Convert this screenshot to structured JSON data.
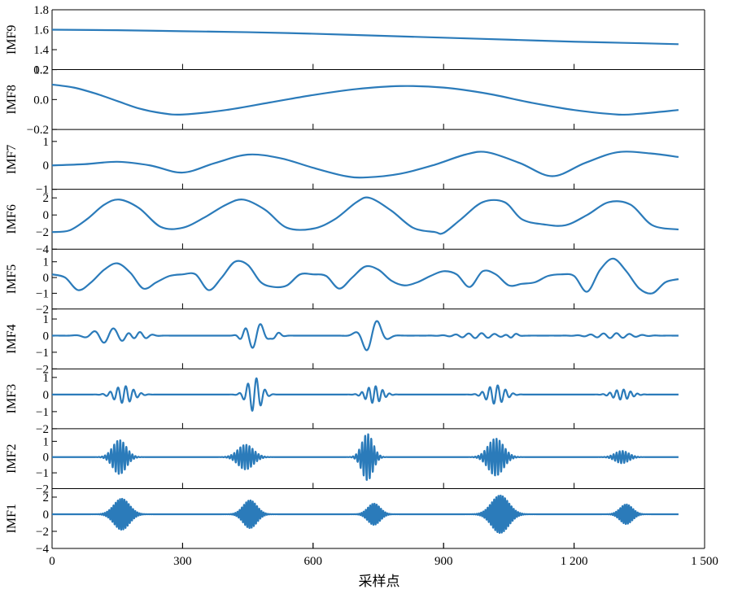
{
  "chart_data": {
    "type": "line",
    "panel_count": 9,
    "xlabel": "采样点",
    "xlim": [
      0,
      1500
    ],
    "xticks": [
      0,
      300,
      600,
      900,
      1200,
      1500
    ],
    "xtick_labels": [
      "0",
      "300",
      "600",
      "900",
      "1 200",
      "1 500"
    ],
    "grid": false,
    "legend": "none",
    "color": "#2b7bba",
    "series": [
      {
        "name": "IMF9",
        "ylim": [
          1.2,
          1.8
        ],
        "yticks": [
          1.2,
          1.4,
          1.6,
          1.8
        ],
        "ytick_labels": [
          "1.2",
          "1.4",
          "1.6",
          "1.8"
        ],
        "x": [
          0,
          150,
          300,
          450,
          600,
          750,
          900,
          1050,
          1200,
          1350,
          1440
        ],
        "y": [
          1.6,
          1.595,
          1.585,
          1.575,
          1.56,
          1.54,
          1.52,
          1.5,
          1.48,
          1.465,
          1.455
        ]
      },
      {
        "name": "IMF8",
        "ylim": [
          -0.2,
          0.2
        ],
        "yticks": [
          -0.2,
          0.0,
          0.2
        ],
        "ytick_labels": [
          "−0.2",
          "0.0",
          "0.2"
        ],
        "x": [
          0,
          50,
          100,
          150,
          200,
          250,
          300,
          400,
          500,
          600,
          700,
          800,
          900,
          1000,
          1100,
          1200,
          1300,
          1350,
          1440
        ],
        "y": [
          0.1,
          0.08,
          0.04,
          -0.01,
          -0.06,
          -0.09,
          -0.1,
          -0.07,
          -0.02,
          0.03,
          0.07,
          0.09,
          0.08,
          0.04,
          -0.02,
          -0.07,
          -0.1,
          -0.095,
          -0.07
        ]
      },
      {
        "name": "IMF7",
        "ylim": [
          -1,
          1.5
        ],
        "yticks": [
          -1,
          0,
          1
        ],
        "ytick_labels": [
          "−1",
          "0",
          "1"
        ],
        "x": [
          0,
          75,
          150,
          225,
          300,
          375,
          450,
          525,
          600,
          675,
          725,
          800,
          875,
          950,
          1000,
          1075,
          1150,
          1225,
          1300,
          1375,
          1440
        ],
        "y": [
          0,
          0.05,
          0.15,
          0.0,
          -0.3,
          0.1,
          0.45,
          0.3,
          -0.1,
          -0.45,
          -0.5,
          -0.35,
          0.0,
          0.45,
          0.55,
          0.1,
          -0.45,
          0.1,
          0.55,
          0.5,
          0.35
        ]
      },
      {
        "name": "IMF6",
        "ylim": [
          -4,
          3
        ],
        "yticks": [
          -4,
          -2,
          0,
          2
        ],
        "ytick_labels": [
          "−4",
          "−2",
          "0",
          "2"
        ],
        "x": [
          0,
          40,
          80,
          120,
          155,
          200,
          250,
          300,
          350,
          400,
          440,
          490,
          540,
          600,
          650,
          700,
          730,
          780,
          830,
          880,
          900,
          940,
          990,
          1040,
          1080,
          1130,
          1180,
          1230,
          1280,
          1330,
          1380,
          1440
        ],
        "y": [
          -2,
          -1.8,
          -0.5,
          1.2,
          1.8,
          0.8,
          -1.4,
          -1.5,
          -0.3,
          1.2,
          1.8,
          0.6,
          -1.5,
          -1.6,
          -0.5,
          1.5,
          2.0,
          0.5,
          -1.5,
          -2.0,
          -2.1,
          -0.5,
          1.5,
          1.5,
          -0.5,
          -1.1,
          -1.2,
          0.0,
          1.5,
          1.2,
          -1.2,
          -1.7
        ]
      },
      {
        "name": "IMF5",
        "ylim": [
          -2,
          1.8
        ],
        "yticks": [
          -2,
          -1,
          0,
          1
        ],
        "ytick_labels": [
          "−2",
          "−1",
          "0",
          "1"
        ],
        "x": [
          0,
          30,
          60,
          90,
          120,
          150,
          180,
          210,
          240,
          270,
          300,
          330,
          360,
          390,
          420,
          450,
          480,
          510,
          540,
          570,
          600,
          630,
          660,
          690,
          720,
          750,
          780,
          810,
          840,
          870,
          900,
          930,
          960,
          990,
          1020,
          1050,
          1080,
          1110,
          1140,
          1170,
          1200,
          1230,
          1260,
          1290,
          1320,
          1350,
          1380,
          1410,
          1440
        ],
        "y": [
          0.2,
          0.0,
          -0.8,
          -0.3,
          0.5,
          0.9,
          0.3,
          -0.7,
          -0.3,
          0.1,
          0.2,
          0.2,
          -0.8,
          0.0,
          1.0,
          0.8,
          -0.3,
          -0.6,
          -0.5,
          0.2,
          0.2,
          0.1,
          -0.7,
          0.0,
          0.7,
          0.5,
          -0.2,
          -0.5,
          -0.3,
          0.1,
          0.4,
          0.2,
          -0.6,
          0.4,
          0.2,
          -0.5,
          -0.4,
          -0.3,
          0.1,
          0.2,
          0.1,
          -0.9,
          0.5,
          1.2,
          0.4,
          -0.7,
          -1.0,
          -0.3,
          -0.1
        ]
      },
      {
        "name": "IMF4",
        "ylim": [
          -2,
          1.6
        ],
        "yticks": [
          -2,
          -1,
          0,
          1
        ],
        "ytick_labels": [
          "−2",
          "−1",
          "0",
          "1"
        ],
        "envelopes": [
          {
            "center": 130,
            "width": 45,
            "amp": 0.45,
            "period": 45
          },
          {
            "center": 195,
            "width": 30,
            "amp": 0.25,
            "period": 30
          },
          {
            "center": 440,
            "width": 15,
            "amp": 0.3,
            "period": 30
          },
          {
            "center": 470,
            "width": 25,
            "amp": 0.8,
            "period": 40
          },
          {
            "center": 515,
            "width": 15,
            "amp": 0.2,
            "period": 30
          },
          {
            "center": 735,
            "width": 30,
            "amp": 1.05,
            "period": 55
          },
          {
            "center": 980,
            "width": 60,
            "amp": 0.15,
            "period": 30
          },
          {
            "center": 1060,
            "width": 15,
            "amp": 0.15,
            "period": 30
          },
          {
            "center": 1290,
            "width": 60,
            "amp": 0.15,
            "period": 30
          }
        ]
      },
      {
        "name": "IMF3",
        "ylim": [
          -2,
          1.5
        ],
        "yticks": [
          -2,
          -1,
          0,
          1
        ],
        "ytick_labels": [
          "−2",
          "−1",
          "0",
          "1"
        ],
        "envelopes": [
          {
            "center": 165,
            "width": 30,
            "amp": 0.5,
            "period": 18
          },
          {
            "center": 465,
            "width": 22,
            "amp": 1.0,
            "period": 20
          },
          {
            "center": 740,
            "width": 25,
            "amp": 0.5,
            "period": 16
          },
          {
            "center": 1020,
            "width": 28,
            "amp": 0.55,
            "period": 18
          },
          {
            "center": 1310,
            "width": 28,
            "amp": 0.3,
            "period": 16
          }
        ]
      },
      {
        "name": "IMF2",
        "ylim": [
          -2,
          1.8
        ],
        "yticks": [
          -2,
          -1,
          0,
          1
        ],
        "ytick_labels": [
          "−2",
          "−1",
          "0",
          "1"
        ],
        "envelopes": [
          {
            "center": 155,
            "width": 22,
            "amp": 1.1,
            "period": 7
          },
          {
            "center": 445,
            "width": 25,
            "amp": 0.8,
            "period": 7
          },
          {
            "center": 725,
            "width": 18,
            "amp": 1.5,
            "period": 7
          },
          {
            "center": 1020,
            "width": 25,
            "amp": 1.2,
            "period": 7
          },
          {
            "center": 1310,
            "width": 22,
            "amp": 0.4,
            "period": 7
          }
        ]
      },
      {
        "name": "IMF1",
        "ylim": [
          -4,
          3
        ],
        "yticks": [
          -4,
          -2,
          0,
          2
        ],
        "ytick_labels": [
          "−4",
          "−2",
          "0",
          "2"
        ],
        "envelopes": [
          {
            "center": 160,
            "width": 25,
            "amp": 1.9,
            "period": 5
          },
          {
            "center": 455,
            "width": 22,
            "amp": 1.7,
            "period": 5
          },
          {
            "center": 740,
            "width": 20,
            "amp": 1.3,
            "period": 5
          },
          {
            "center": 1030,
            "width": 28,
            "amp": 2.3,
            "period": 5
          },
          {
            "center": 1320,
            "width": 20,
            "amp": 1.2,
            "period": 5
          }
        ]
      }
    ]
  }
}
